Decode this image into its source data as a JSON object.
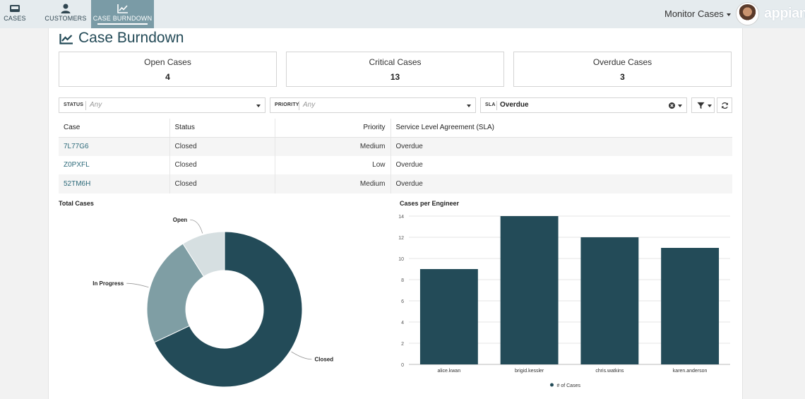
{
  "nav": {
    "tabs": [
      {
        "label": "CASES",
        "icon": "inbox-icon"
      },
      {
        "label": "CUSTOMERS",
        "icon": "user-icon"
      },
      {
        "label": "CASE BURNDOWN",
        "icon": "line-chart-icon",
        "active": true
      }
    ],
    "site_menu": "Monitor Cases",
    "logo": "appian"
  },
  "page": {
    "title": "Case Burndown"
  },
  "kpis": [
    {
      "label": "Open Cases",
      "value": "4"
    },
    {
      "label": "Critical Cases",
      "value": "13"
    },
    {
      "label": "Overdue Cases",
      "value": "3"
    }
  ],
  "filters": {
    "status": {
      "label": "STATUS",
      "value": "Any"
    },
    "priority": {
      "label": "PRIORITY",
      "value": "Any"
    },
    "sla": {
      "label": "SLA",
      "value": "Overdue"
    }
  },
  "table": {
    "headers": [
      "Case",
      "Status",
      "Priority",
      "Service Level Agreement (SLA)"
    ],
    "rows": [
      {
        "case": "7L77G6",
        "status": "Closed",
        "priority": "Medium",
        "sla": "Overdue"
      },
      {
        "case": "Z0PXFL",
        "status": "Closed",
        "priority": "Low",
        "sla": "Overdue"
      },
      {
        "case": "52TM6H",
        "status": "Closed",
        "priority": "Medium",
        "sla": "Overdue"
      }
    ]
  },
  "colors": {
    "dark": "#234b58",
    "mid": "#7f9ea4",
    "light": "#d6dfe1",
    "link": "#2d6a7a"
  },
  "chart_data": [
    {
      "type": "pie",
      "title": "Total Cases",
      "style": "donut",
      "categories": [
        "Closed",
        "In Progress",
        "Open"
      ],
      "values": [
        68,
        23,
        9
      ],
      "colors": [
        "#234b58",
        "#7f9ea4",
        "#d6dfe1"
      ]
    },
    {
      "type": "bar",
      "title": "Cases per Engineer",
      "categories": [
        "alice.kwan",
        "brigid.kessler",
        "chris.watkins",
        "karen.anderson"
      ],
      "series": [
        {
          "name": "# of Cases",
          "values": [
            9,
            14,
            12,
            11
          ]
        }
      ],
      "ylim": [
        0,
        14
      ],
      "yticks": [
        0,
        2,
        4,
        6,
        8,
        10,
        12,
        14
      ],
      "grid": true,
      "legend": "bottom"
    }
  ]
}
